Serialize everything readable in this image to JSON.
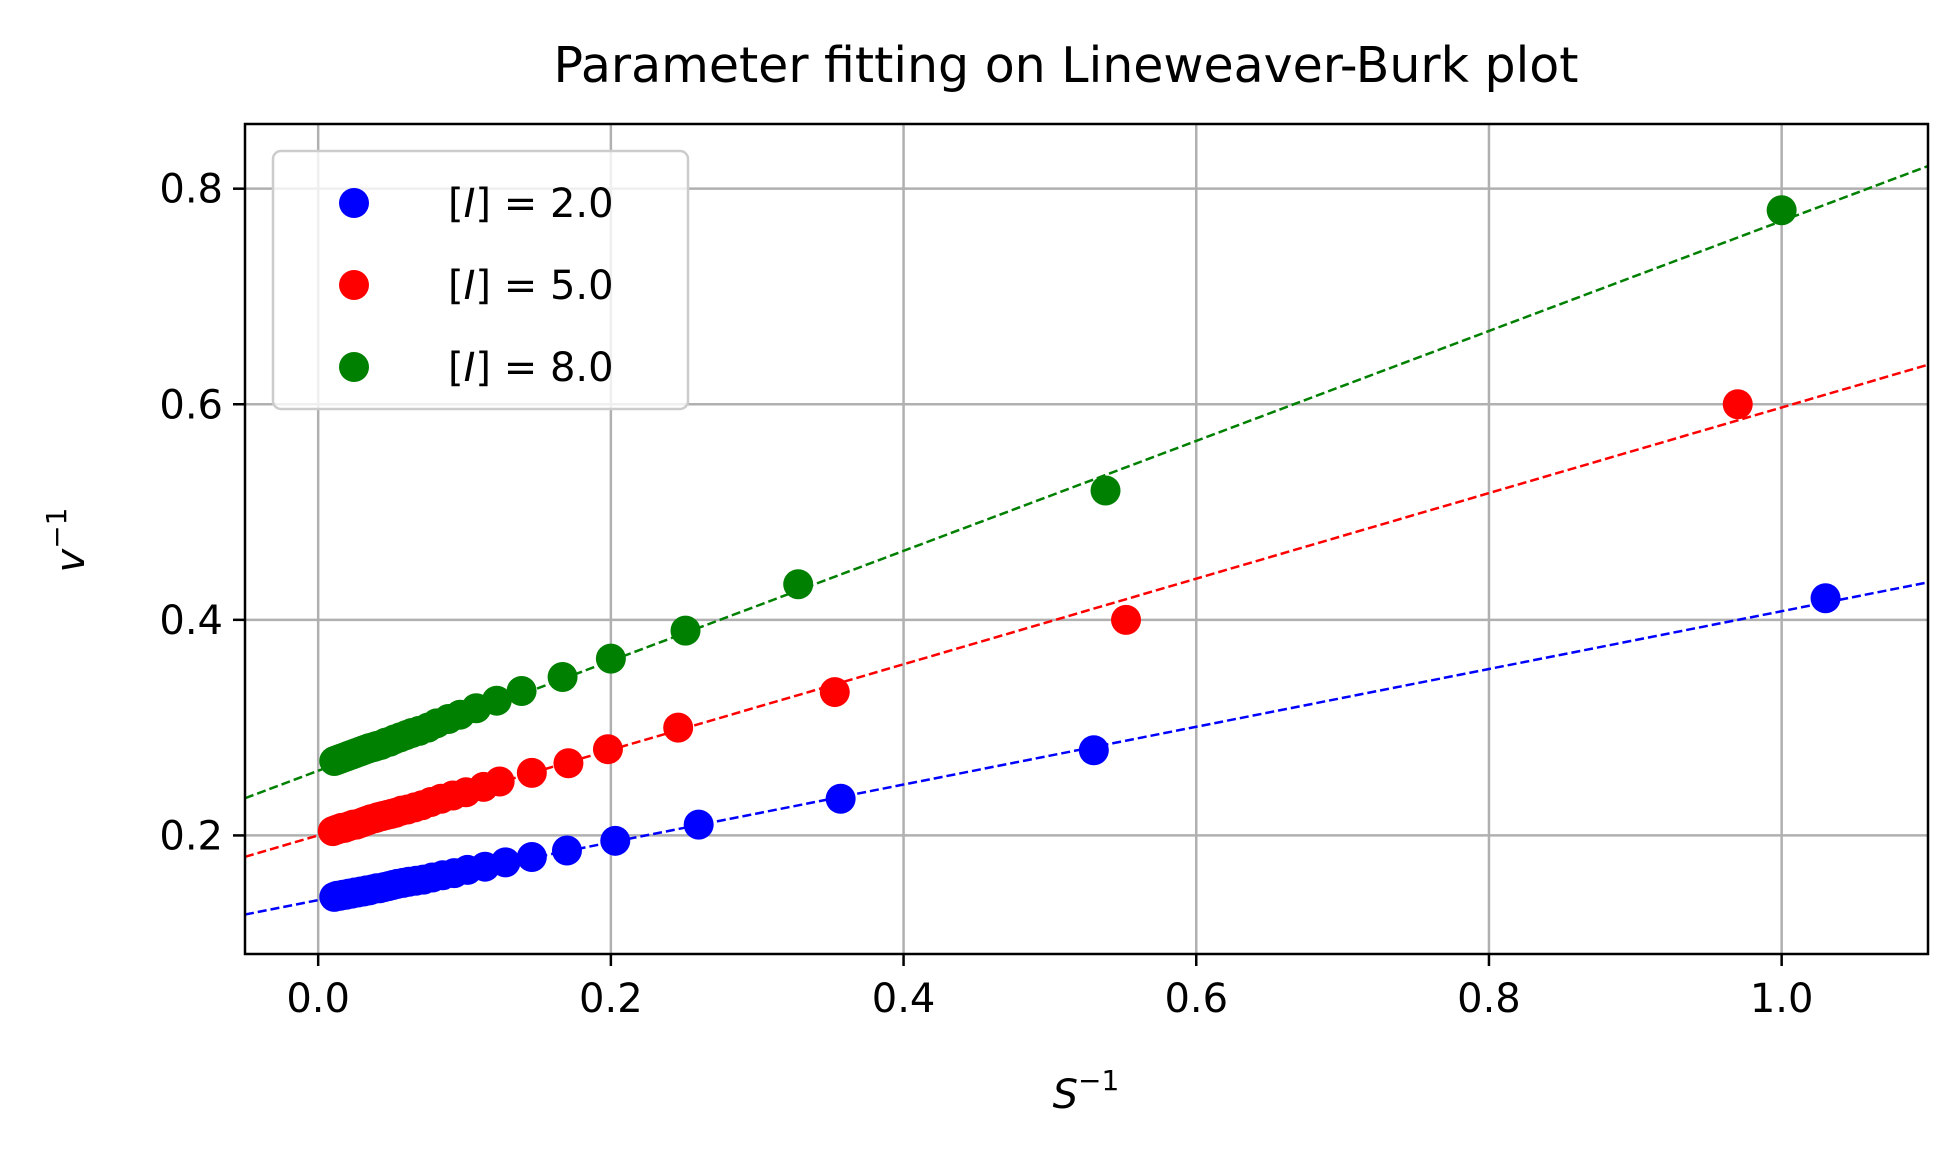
{
  "chart_data": {
    "type": "scatter",
    "title": "Parameter fitting on Lineweaver-Burk plot",
    "xlabel": {
      "base": "S",
      "sup": "−1"
    },
    "ylabel": {
      "base": "v",
      "sup": "−1"
    },
    "xlim": [
      -0.05,
      1.1
    ],
    "ylim": [
      0.09,
      0.86
    ],
    "xticks": [
      0.0,
      0.2,
      0.4,
      0.6,
      0.8,
      1.0
    ],
    "yticks": [
      0.2,
      0.4,
      0.6,
      0.8
    ],
    "xtick_labels": [
      "0.0",
      "0.2",
      "0.4",
      "0.6",
      "0.8",
      "1.0"
    ],
    "ytick_labels": [
      "0.2",
      "0.4",
      "0.6",
      "0.8"
    ],
    "grid": true,
    "legend_position": "top-left",
    "series": [
      {
        "name": "[I] = 2.0",
        "legend": {
          "open": "[",
          "var": "I",
          "rest": "] = 2.0"
        },
        "color": "#0000ff",
        "fit_line": {
          "slope": 0.268,
          "intercept": 0.14
        },
        "x": [
          1.03,
          0.53,
          0.357,
          0.26,
          0.203,
          0.17,
          0.146,
          0.128,
          0.114,
          0.102,
          0.093,
          0.085,
          0.078,
          0.072,
          0.067,
          0.062,
          0.058,
          0.054,
          0.051,
          0.048,
          0.045,
          0.042,
          0.04,
          0.037,
          0.035,
          0.033,
          0.031,
          0.029,
          0.027,
          0.025,
          0.023,
          0.021,
          0.019,
          0.017,
          0.015,
          0.013,
          0.011
        ],
        "y": [
          0.42,
          0.279,
          0.234,
          0.21,
          0.195,
          0.186,
          0.18,
          0.175,
          0.171,
          0.168,
          0.165,
          0.163,
          0.161,
          0.159,
          0.158,
          0.157,
          0.156,
          0.155,
          0.154,
          0.153,
          0.152,
          0.151,
          0.151,
          0.15,
          0.149,
          0.149,
          0.148,
          0.148,
          0.147,
          0.147,
          0.146,
          0.146,
          0.145,
          0.145,
          0.144,
          0.144,
          0.143
        ]
      },
      {
        "name": "[I] = 5.0",
        "legend": {
          "open": "[",
          "var": "I",
          "rest": "] = 5.0"
        },
        "color": "#ff0000",
        "fit_line": {
          "slope": 0.397,
          "intercept": 0.2
        },
        "x": [
          0.97,
          0.552,
          0.353,
          0.246,
          0.198,
          0.171,
          0.146,
          0.124,
          0.113,
          0.101,
          0.092,
          0.084,
          0.077,
          0.071,
          0.066,
          0.061,
          0.057,
          0.053,
          0.05,
          0.047,
          0.044,
          0.041,
          0.039,
          0.036,
          0.034,
          0.032,
          0.03,
          0.028,
          0.026,
          0.024,
          0.022,
          0.02,
          0.018,
          0.016,
          0.014,
          0.012,
          0.01
        ],
        "y": [
          0.6,
          0.4,
          0.333,
          0.3,
          0.28,
          0.267,
          0.258,
          0.25,
          0.245,
          0.24,
          0.237,
          0.234,
          0.231,
          0.228,
          0.226,
          0.224,
          0.223,
          0.221,
          0.22,
          0.219,
          0.218,
          0.217,
          0.216,
          0.215,
          0.214,
          0.213,
          0.212,
          0.211,
          0.21,
          0.21,
          0.209,
          0.208,
          0.207,
          0.207,
          0.206,
          0.205,
          0.204
        ]
      },
      {
        "name": "[I] = 8.0",
        "legend": {
          "open": "[",
          "var": "I",
          "rest": "] = 8.0"
        },
        "color": "#008000",
        "fit_line": {
          "slope": 0.51,
          "intercept": 0.26
        },
        "x": [
          1.0,
          0.538,
          0.328,
          0.251,
          0.2,
          0.167,
          0.139,
          0.122,
          0.108,
          0.097,
          0.089,
          0.081,
          0.075,
          0.069,
          0.064,
          0.06,
          0.056,
          0.052,
          0.049,
          0.046,
          0.043,
          0.04,
          0.038,
          0.035,
          0.033,
          0.031,
          0.029,
          0.027,
          0.025,
          0.023,
          0.021,
          0.019,
          0.017,
          0.015,
          0.013,
          0.011
        ],
        "y": [
          0.78,
          0.52,
          0.433,
          0.39,
          0.364,
          0.347,
          0.334,
          0.325,
          0.318,
          0.312,
          0.308,
          0.304,
          0.3,
          0.297,
          0.295,
          0.293,
          0.291,
          0.289,
          0.287,
          0.286,
          0.284,
          0.283,
          0.282,
          0.281,
          0.28,
          0.279,
          0.278,
          0.277,
          0.276,
          0.275,
          0.274,
          0.273,
          0.272,
          0.271,
          0.27,
          0.269
        ]
      }
    ]
  }
}
